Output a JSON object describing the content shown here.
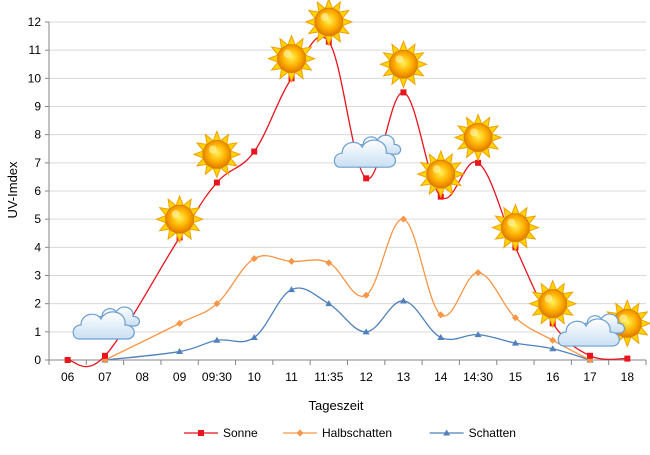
{
  "chart_data": {
    "type": "line",
    "xlabel": "Tageszeit",
    "ylabel": "UV-Imdex",
    "ylim": [
      0,
      12
    ],
    "yticks": [
      0,
      1,
      2,
      3,
      4,
      5,
      6,
      7,
      8,
      9,
      10,
      11,
      12
    ],
    "grid": true,
    "legend_position": "bottom",
    "categories": [
      "06",
      "07",
      "08",
      "09",
      "09:30",
      "10",
      "11",
      "11:35",
      "12",
      "13",
      "14",
      "14:30",
      "15",
      "16",
      "17",
      "18"
    ],
    "series": [
      {
        "name": "Sonne",
        "color": "#e8141e",
        "marker": "square",
        "values": [
          0,
          0.15,
          null,
          4.35,
          6.3,
          7.4,
          10.0,
          11.3,
          6.45,
          9.5,
          5.8,
          7.0,
          4.0,
          1.3,
          0.15,
          0.05
        ]
      },
      {
        "name": "Halbschatten",
        "color": "#f79646",
        "marker": "diamond",
        "values": [
          null,
          0,
          null,
          1.3,
          2.0,
          3.6,
          3.5,
          3.45,
          2.3,
          5.0,
          1.6,
          3.1,
          1.5,
          0.7,
          0,
          null
        ]
      },
      {
        "name": "Schatten",
        "color": "#4f81bd",
        "marker": "triangle",
        "values": [
          null,
          0,
          null,
          0.3,
          0.7,
          0.8,
          2.5,
          2.0,
          1.0,
          2.1,
          0.8,
          0.9,
          0.6,
          0.4,
          0,
          null
        ]
      }
    ],
    "weather_icons": [
      {
        "category": "07",
        "value": 1.1,
        "icon": "cloud-icon"
      },
      {
        "category": "09",
        "value": 5.0,
        "icon": "sun-icon"
      },
      {
        "category": "09:30",
        "value": 7.3,
        "icon": "sun-icon"
      },
      {
        "category": "11",
        "value": 10.7,
        "icon": "sun-icon"
      },
      {
        "category": "11:35",
        "value": 12.0,
        "icon": "sun-icon"
      },
      {
        "category": "12",
        "value": 7.2,
        "icon": "cloud-icon"
      },
      {
        "category": "13",
        "value": 10.5,
        "icon": "sun-icon"
      },
      {
        "category": "14",
        "value": 6.6,
        "icon": "sun-icon"
      },
      {
        "category": "14:30",
        "value": 7.9,
        "icon": "sun-icon"
      },
      {
        "category": "15",
        "value": 4.7,
        "icon": "sun-icon"
      },
      {
        "category": "16",
        "value": 2.0,
        "icon": "sun-icon"
      },
      {
        "category": "18",
        "value": 1.3,
        "icon": "sun-icon"
      },
      {
        "category": "17",
        "value": 0.85,
        "icon": "cloud-icon"
      }
    ]
  }
}
